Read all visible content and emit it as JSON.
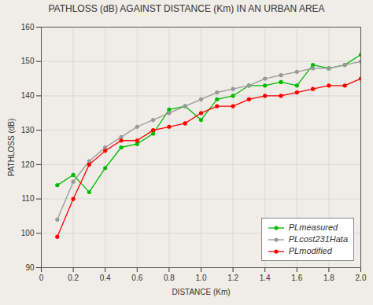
{
  "chart_data": {
    "type": "line",
    "title": "PATHLOSS (dB) AGAINST DISTANCE (Km) IN AN URBAN AREA",
    "x_label": "DISTANCE (Km)",
    "y_label": "PATHLOSS (dB)",
    "x": [
      0.1,
      0.2,
      0.3,
      0.4,
      0.5,
      0.6,
      0.7,
      0.8,
      0.9,
      1.0,
      1.1,
      1.2,
      1.3,
      1.4,
      1.5,
      1.6,
      1.7,
      1.8,
      1.9,
      2.0
    ],
    "series": [
      {
        "name": "PLmeasured",
        "color": "#00bb00",
        "marker": "circle",
        "values": [
          114,
          117,
          112,
          119,
          125,
          126,
          129,
          136,
          137,
          133,
          139,
          140,
          143,
          143,
          144,
          143,
          149,
          148,
          149,
          152
        ]
      },
      {
        "name": "PLcost231Hata",
        "color": "#999999",
        "marker": "circle",
        "values": [
          104,
          115,
          121,
          125,
          128,
          131,
          133,
          135,
          137,
          139,
          141,
          142,
          143,
          145,
          146,
          147,
          148,
          148,
          149,
          150
        ]
      },
      {
        "name": "PLmodified",
        "color": "#ff0000",
        "marker": "circle",
        "values": [
          99,
          110,
          120,
          124,
          127,
          127,
          130,
          131,
          132,
          135,
          137,
          137,
          139,
          140,
          140,
          141,
          142,
          143,
          143,
          145
        ]
      }
    ],
    "xlim": [
      0,
      2.0
    ],
    "ylim": [
      90,
      160
    ],
    "xticks": [
      0,
      0.2,
      0.4,
      0.6,
      0.8,
      {
        "value": 1.0,
        "label": "1.0"
      },
      1.2,
      1.4,
      1.6,
      1.8,
      {
        "value": 2.0,
        "label": "2.0"
      }
    ],
    "yticks": [
      90,
      100,
      110,
      120,
      130,
      140,
      150,
      160
    ],
    "grid": true,
    "legend": "lower right"
  }
}
